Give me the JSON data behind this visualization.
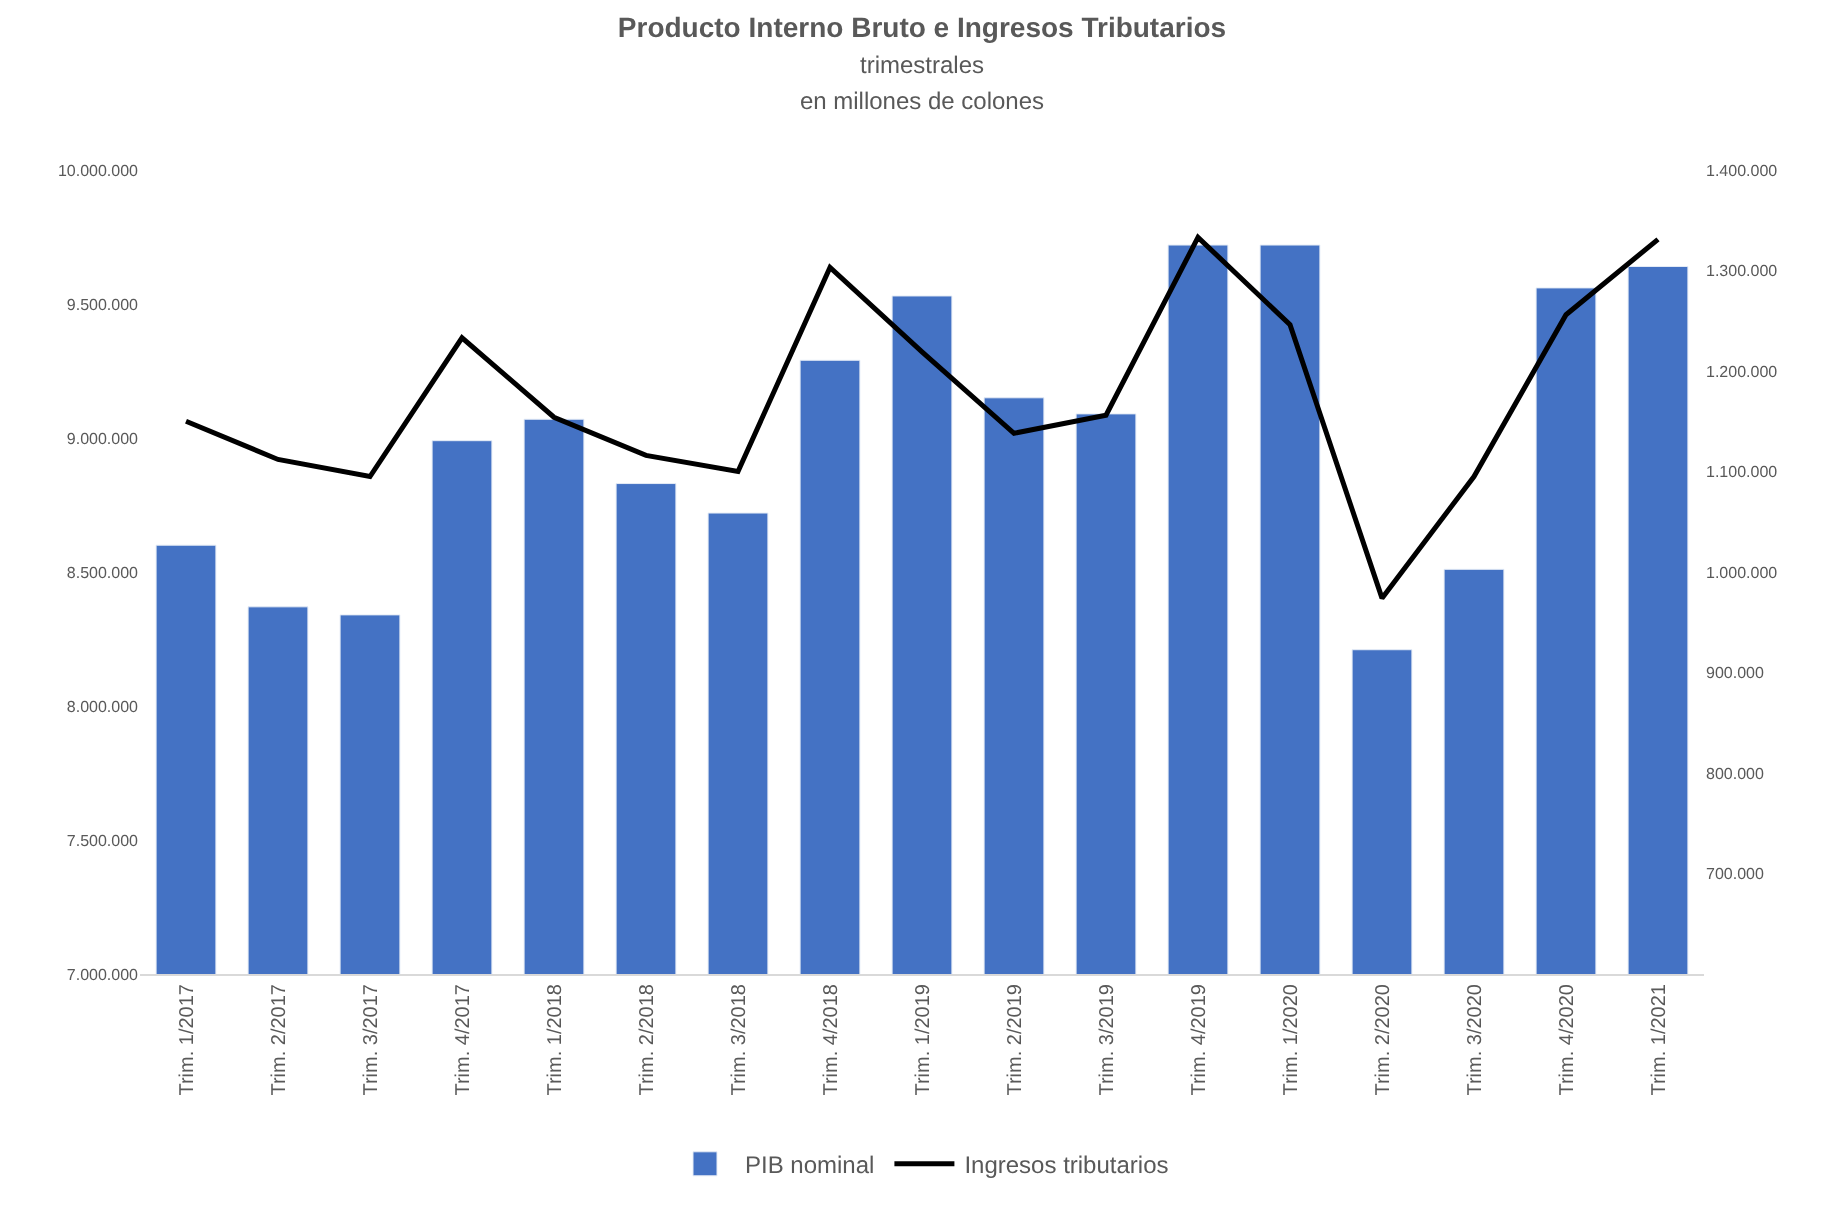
{
  "chart_data": {
    "type": "bar",
    "title": "Producto Interno Bruto e Ingresos Tributarios",
    "subtitle": "trimestrales\nen millones de colones",
    "categories": [
      "Trim. 1/2017",
      "Trim. 2/2017",
      "Trim. 3/2017",
      "Trim. 4/2017",
      "Trim. 1/2018",
      "Trim. 2/2018",
      "Trim. 3/2018",
      "Trim. 4/2018",
      "Trim. 1/2019",
      "Trim. 2/2019",
      "Trim. 3/2019",
      "Trim. 4/2019",
      "Trim. 1/2020",
      "Trim. 2/2020",
      "Trim. 3/2020",
      "Trim. 4/2020",
      "Trim. 1/2021"
    ],
    "series": [
      {
        "name": "PIB nominal",
        "color": "#4472c4",
        "values": [
          8600000,
          8370000,
          8340000,
          8990000,
          9070000,
          8830000,
          8720000,
          9290000,
          9530000,
          9150000,
          9090000,
          9720000,
          9720000,
          8210000,
          8510000,
          9560000,
          9640000
        ]
      },
      {
        "name": "Ingresos tributarios",
        "type": "line",
        "axis": "y2",
        "color": "#000000",
        "values": [
          1150000,
          1112000,
          1095000,
          1233000,
          1154000,
          1116000,
          1100000,
          1303000,
          1219000,
          1138000,
          1156000,
          1333000,
          1246000,
          974000,
          1095000,
          1256000,
          1331000
        ]
      }
    ],
    "ylim": [
      7000000,
      10000000
    ],
    "yticks": [
      {
        "value": 7000000,
        "label": "7.000.000"
      },
      {
        "value": 7500000,
        "label": "7.500.000"
      },
      {
        "value": 8000000,
        "label": "8.000.000"
      },
      {
        "value": 8500000,
        "label": "8.500.000"
      },
      {
        "value": 9000000,
        "label": "9.000.000"
      },
      {
        "value": 9500000,
        "label": "9.500.000"
      },
      {
        "value": 10000000,
        "label": "10.000.000"
      }
    ],
    "y2lim": [
      600000,
      1400000
    ],
    "y2ticks": [
      {
        "value": 700000,
        "label": "700.000"
      },
      {
        "value": 800000,
        "label": "800.000"
      },
      {
        "value": 900000,
        "label": "900.000"
      },
      {
        "value": 1000000,
        "label": "1.000.000"
      },
      {
        "value": 1100000,
        "label": "1.100.000"
      },
      {
        "value": 1200000,
        "label": "1.200.000"
      },
      {
        "value": 1300000,
        "label": "1.300.000"
      },
      {
        "value": 1400000,
        "label": "1.400.000"
      }
    ],
    "grid": false,
    "legend": "bottom"
  }
}
